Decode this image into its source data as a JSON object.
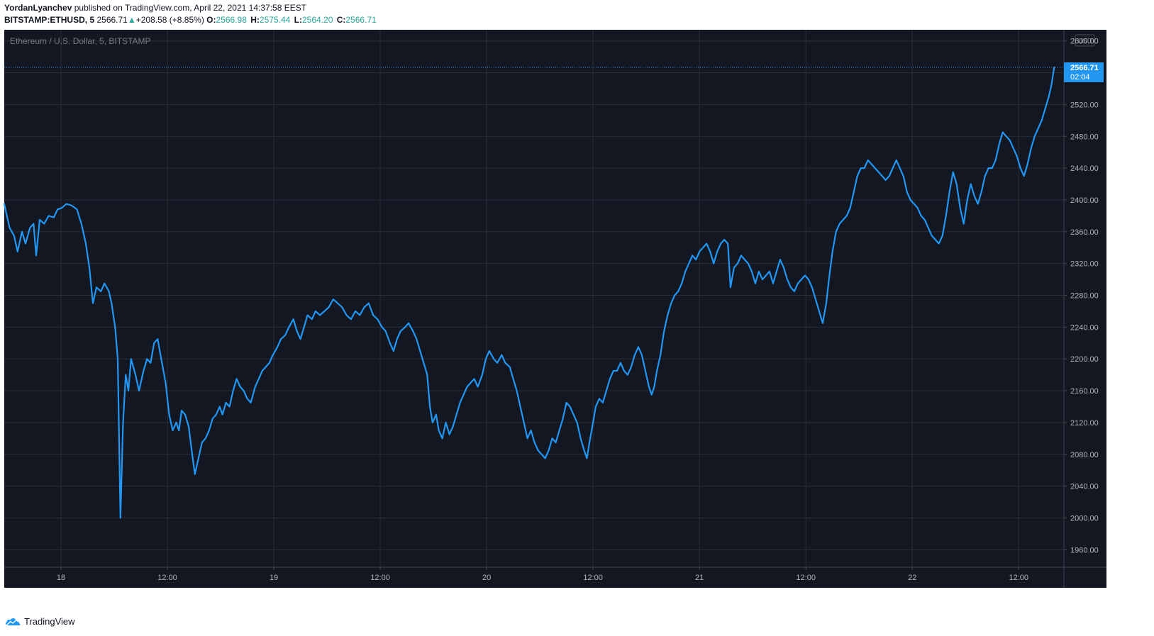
{
  "header": {
    "author": "YordanLyanchev",
    "published_text": "published on TradingView.com, April 22, 2021 14:37:58 EEST",
    "symbol": "BITSTAMP:ETHUSD, 5",
    "last": "2566.71",
    "change_arrow": "▲",
    "change": "+208.58 (+8.85%)",
    "o_label": "O:",
    "o_value": "2566.98",
    "h_label": "H:",
    "h_value": "2575.44",
    "l_label": "L:",
    "l_value": "2564.20",
    "c_label": "C:",
    "c_value": "2566.71"
  },
  "footer": {
    "brand": "TradingView",
    "logo_icon": "tradingview-cloud-icon"
  },
  "colors": {
    "background": "#131722",
    "grid": "#2a2e39",
    "line": "#2196f3",
    "axis_text": "#b2b5be",
    "up": "#26a69a"
  },
  "chart_data": {
    "type": "line",
    "title": "Ethereum / U.S. Dollar, 5, BITSTAMP",
    "currency_label": "USD",
    "last_price_label": "2566.71",
    "countdown_label": "02:04",
    "x_unit": "hours since the first bar",
    "xlim": [
      0,
      119.5
    ],
    "ylim": [
      1938,
      2614
    ],
    "y_ticks": [
      1960,
      2000,
      2040,
      2080,
      2120,
      2160,
      2200,
      2240,
      2280,
      2320,
      2360,
      2400,
      2440,
      2480,
      2520,
      2560,
      2600
    ],
    "y_tick_labels": [
      "1960.00",
      "2000.00",
      "2040.00",
      "2080.00",
      "2120.00",
      "2160.00",
      "2200.00",
      "2240.00",
      "2280.00",
      "2320.00",
      "2360.00",
      "2400.00",
      "2440.00",
      "2480.00",
      "2520.00",
      "2560.00",
      "2600.00"
    ],
    "x_ticks": [
      {
        "x": 6.4,
        "label": "18"
      },
      {
        "x": 18.4,
        "label": "12:00"
      },
      {
        "x": 30.4,
        "label": "19"
      },
      {
        "x": 42.4,
        "label": "12:00"
      },
      {
        "x": 54.4,
        "label": "20"
      },
      {
        "x": 66.4,
        "label": "12:00"
      },
      {
        "x": 78.4,
        "label": "21"
      },
      {
        "x": 90.4,
        "label": "12:00"
      },
      {
        "x": 102.4,
        "label": "22"
      },
      {
        "x": 114.4,
        "label": "12:00"
      }
    ],
    "grid": true,
    "series": [
      {
        "name": "",
        "points": [
          [
            0.0,
            2395
          ],
          [
            0.6,
            2365
          ],
          [
            1.1,
            2355
          ],
          [
            1.5,
            2335
          ],
          [
            2.0,
            2360
          ],
          [
            2.4,
            2345
          ],
          [
            2.9,
            2365
          ],
          [
            3.3,
            2370
          ],
          [
            3.6,
            2330
          ],
          [
            4.0,
            2375
          ],
          [
            4.5,
            2370
          ],
          [
            5.0,
            2380
          ],
          [
            5.6,
            2378
          ],
          [
            6.0,
            2388
          ],
          [
            6.5,
            2390
          ],
          [
            7.0,
            2395
          ],
          [
            7.6,
            2393
          ],
          [
            8.2,
            2388
          ],
          [
            8.7,
            2370
          ],
          [
            9.2,
            2345
          ],
          [
            9.6,
            2315
          ],
          [
            10.0,
            2270
          ],
          [
            10.4,
            2290
          ],
          [
            10.9,
            2285
          ],
          [
            11.3,
            2295
          ],
          [
            11.8,
            2285
          ],
          [
            12.1,
            2270
          ],
          [
            12.5,
            2240
          ],
          [
            12.8,
            2200
          ],
          [
            13.1,
            2000
          ],
          [
            13.4,
            2120
          ],
          [
            13.7,
            2180
          ],
          [
            14.0,
            2160
          ],
          [
            14.3,
            2200
          ],
          [
            14.8,
            2180
          ],
          [
            15.2,
            2160
          ],
          [
            15.7,
            2185
          ],
          [
            16.1,
            2200
          ],
          [
            16.5,
            2195
          ],
          [
            16.9,
            2220
          ],
          [
            17.3,
            2225
          ],
          [
            17.7,
            2200
          ],
          [
            18.2,
            2170
          ],
          [
            18.6,
            2130
          ],
          [
            19.0,
            2110
          ],
          [
            19.4,
            2120
          ],
          [
            19.7,
            2110
          ],
          [
            20.0,
            2135
          ],
          [
            20.4,
            2130
          ],
          [
            20.8,
            2115
          ],
          [
            21.2,
            2080
          ],
          [
            21.5,
            2055
          ],
          [
            21.9,
            2075
          ],
          [
            22.3,
            2095
          ],
          [
            22.7,
            2100
          ],
          [
            23.1,
            2110
          ],
          [
            23.5,
            2125
          ],
          [
            23.9,
            2130
          ],
          [
            24.3,
            2140
          ],
          [
            24.6,
            2130
          ],
          [
            25.0,
            2145
          ],
          [
            25.4,
            2140
          ],
          [
            25.8,
            2160
          ],
          [
            26.2,
            2175
          ],
          [
            26.6,
            2165
          ],
          [
            27.0,
            2160
          ],
          [
            27.4,
            2150
          ],
          [
            27.8,
            2145
          ],
          [
            28.3,
            2165
          ],
          [
            28.7,
            2175
          ],
          [
            29.1,
            2185
          ],
          [
            29.5,
            2190
          ],
          [
            29.9,
            2195
          ],
          [
            30.3,
            2205
          ],
          [
            30.8,
            2215
          ],
          [
            31.2,
            2225
          ],
          [
            31.7,
            2230
          ],
          [
            32.1,
            2240
          ],
          [
            32.6,
            2250
          ],
          [
            33.0,
            2235
          ],
          [
            33.4,
            2225
          ],
          [
            33.8,
            2240
          ],
          [
            34.2,
            2255
          ],
          [
            34.7,
            2250
          ],
          [
            35.1,
            2260
          ],
          [
            35.6,
            2255
          ],
          [
            36.1,
            2260
          ],
          [
            36.6,
            2265
          ],
          [
            37.1,
            2275
          ],
          [
            37.6,
            2270
          ],
          [
            38.1,
            2265
          ],
          [
            38.6,
            2255
          ],
          [
            39.1,
            2250
          ],
          [
            39.6,
            2260
          ],
          [
            40.1,
            2255
          ],
          [
            40.6,
            2265
          ],
          [
            41.1,
            2270
          ],
          [
            41.6,
            2255
          ],
          [
            42.1,
            2250
          ],
          [
            42.6,
            2240
          ],
          [
            43.0,
            2235
          ],
          [
            43.5,
            2220
          ],
          [
            43.9,
            2210
          ],
          [
            44.3,
            2225
          ],
          [
            44.7,
            2235
          ],
          [
            45.2,
            2240
          ],
          [
            45.6,
            2245
          ],
          [
            46.1,
            2235
          ],
          [
            46.5,
            2225
          ],
          [
            46.9,
            2210
          ],
          [
            47.3,
            2195
          ],
          [
            47.7,
            2180
          ],
          [
            48.0,
            2140
          ],
          [
            48.3,
            2120
          ],
          [
            48.7,
            2130
          ],
          [
            49.0,
            2110
          ],
          [
            49.4,
            2100
          ],
          [
            49.8,
            2120
          ],
          [
            50.2,
            2105
          ],
          [
            50.6,
            2115
          ],
          [
            51.0,
            2130
          ],
          [
            51.4,
            2145
          ],
          [
            51.8,
            2155
          ],
          [
            52.2,
            2165
          ],
          [
            52.6,
            2170
          ],
          [
            53.0,
            2175
          ],
          [
            53.4,
            2165
          ],
          [
            53.9,
            2180
          ],
          [
            54.3,
            2200
          ],
          [
            54.7,
            2210
          ],
          [
            55.2,
            2200
          ],
          [
            55.6,
            2195
          ],
          [
            56.1,
            2205
          ],
          [
            56.5,
            2195
          ],
          [
            57.0,
            2190
          ],
          [
            57.4,
            2175
          ],
          [
            57.8,
            2160
          ],
          [
            58.2,
            2140
          ],
          [
            58.6,
            2120
          ],
          [
            59.0,
            2100
          ],
          [
            59.4,
            2110
          ],
          [
            59.8,
            2095
          ],
          [
            60.2,
            2085
          ],
          [
            60.6,
            2080
          ],
          [
            61.0,
            2075
          ],
          [
            61.4,
            2085
          ],
          [
            61.8,
            2100
          ],
          [
            62.2,
            2095
          ],
          [
            62.6,
            2110
          ],
          [
            63.0,
            2125
          ],
          [
            63.4,
            2145
          ],
          [
            63.8,
            2140
          ],
          [
            64.2,
            2130
          ],
          [
            64.6,
            2120
          ],
          [
            65.0,
            2100
          ],
          [
            65.4,
            2085
          ],
          [
            65.7,
            2075
          ],
          [
            66.0,
            2095
          ],
          [
            66.4,
            2120
          ],
          [
            66.7,
            2140
          ],
          [
            67.1,
            2150
          ],
          [
            67.5,
            2145
          ],
          [
            67.9,
            2160
          ],
          [
            68.3,
            2175
          ],
          [
            68.7,
            2185
          ],
          [
            69.1,
            2185
          ],
          [
            69.5,
            2195
          ],
          [
            69.9,
            2185
          ],
          [
            70.3,
            2180
          ],
          [
            70.7,
            2190
          ],
          [
            71.1,
            2205
          ],
          [
            71.5,
            2215
          ],
          [
            71.9,
            2205
          ],
          [
            72.3,
            2185
          ],
          [
            72.7,
            2165
          ],
          [
            73.0,
            2155
          ],
          [
            73.3,
            2165
          ],
          [
            73.6,
            2185
          ],
          [
            74.0,
            2205
          ],
          [
            74.4,
            2235
          ],
          [
            74.8,
            2255
          ],
          [
            75.2,
            2270
          ],
          [
            75.6,
            2280
          ],
          [
            76.0,
            2285
          ],
          [
            76.4,
            2295
          ],
          [
            76.8,
            2310
          ],
          [
            77.2,
            2320
          ],
          [
            77.6,
            2330
          ],
          [
            78.0,
            2325
          ],
          [
            78.4,
            2335
          ],
          [
            78.8,
            2340
          ],
          [
            79.2,
            2345
          ],
          [
            79.6,
            2335
          ],
          [
            80.0,
            2320
          ],
          [
            80.4,
            2335
          ],
          [
            80.8,
            2345
          ],
          [
            81.2,
            2350
          ],
          [
            81.6,
            2345
          ],
          [
            81.9,
            2290
          ],
          [
            82.3,
            2315
          ],
          [
            82.7,
            2320
          ],
          [
            83.1,
            2330
          ],
          [
            83.5,
            2325
          ],
          [
            83.9,
            2320
          ],
          [
            84.3,
            2310
          ],
          [
            84.7,
            2295
          ],
          [
            85.1,
            2310
          ],
          [
            85.5,
            2300
          ],
          [
            85.9,
            2305
          ],
          [
            86.3,
            2310
          ],
          [
            86.7,
            2295
          ],
          [
            87.1,
            2310
          ],
          [
            87.5,
            2325
          ],
          [
            87.9,
            2315
          ],
          [
            88.3,
            2300
          ],
          [
            88.7,
            2290
          ],
          [
            89.1,
            2285
          ],
          [
            89.5,
            2295
          ],
          [
            89.9,
            2300
          ],
          [
            90.3,
            2305
          ],
          [
            90.7,
            2300
          ],
          [
            91.1,
            2290
          ],
          [
            91.5,
            2275
          ],
          [
            91.9,
            2260
          ],
          [
            92.3,
            2245
          ],
          [
            92.7,
            2270
          ],
          [
            93.0,
            2300
          ],
          [
            93.4,
            2335
          ],
          [
            93.8,
            2360
          ],
          [
            94.2,
            2370
          ],
          [
            94.6,
            2375
          ],
          [
            95.0,
            2380
          ],
          [
            95.4,
            2390
          ],
          [
            95.8,
            2410
          ],
          [
            96.2,
            2430
          ],
          [
            96.6,
            2440
          ],
          [
            97.0,
            2440
          ],
          [
            97.4,
            2450
          ],
          [
            97.8,
            2445
          ],
          [
            98.2,
            2440
          ],
          [
            98.6,
            2435
          ],
          [
            99.0,
            2430
          ],
          [
            99.4,
            2425
          ],
          [
            99.8,
            2430
          ],
          [
            100.2,
            2440
          ],
          [
            100.6,
            2450
          ],
          [
            101.0,
            2440
          ],
          [
            101.4,
            2430
          ],
          [
            101.8,
            2410
          ],
          [
            102.2,
            2400
          ],
          [
            102.6,
            2395
          ],
          [
            103.0,
            2390
          ],
          [
            103.4,
            2380
          ],
          [
            103.8,
            2375
          ],
          [
            104.2,
            2365
          ],
          [
            104.6,
            2355
          ],
          [
            105.0,
            2350
          ],
          [
            105.4,
            2345
          ],
          [
            105.8,
            2355
          ],
          [
            106.2,
            2380
          ],
          [
            106.6,
            2410
          ],
          [
            107.0,
            2435
          ],
          [
            107.4,
            2420
          ],
          [
            107.8,
            2390
          ],
          [
            108.2,
            2370
          ],
          [
            108.6,
            2400
          ],
          [
            109.0,
            2420
          ],
          [
            109.4,
            2405
          ],
          [
            109.8,
            2395
          ],
          [
            110.2,
            2410
          ],
          [
            110.6,
            2430
          ],
          [
            111.0,
            2440
          ],
          [
            111.4,
            2440
          ],
          [
            111.8,
            2450
          ],
          [
            112.2,
            2470
          ],
          [
            112.6,
            2485
          ],
          [
            113.0,
            2480
          ],
          [
            113.4,
            2475
          ],
          [
            113.8,
            2465
          ],
          [
            114.2,
            2455
          ],
          [
            114.6,
            2440
          ],
          [
            115.0,
            2430
          ],
          [
            115.4,
            2445
          ],
          [
            115.8,
            2465
          ],
          [
            116.2,
            2480
          ],
          [
            116.6,
            2490
          ],
          [
            117.0,
            2500
          ],
          [
            117.4,
            2515
          ],
          [
            117.8,
            2530
          ],
          [
            118.1,
            2545
          ],
          [
            118.4,
            2566.71
          ]
        ]
      }
    ]
  }
}
